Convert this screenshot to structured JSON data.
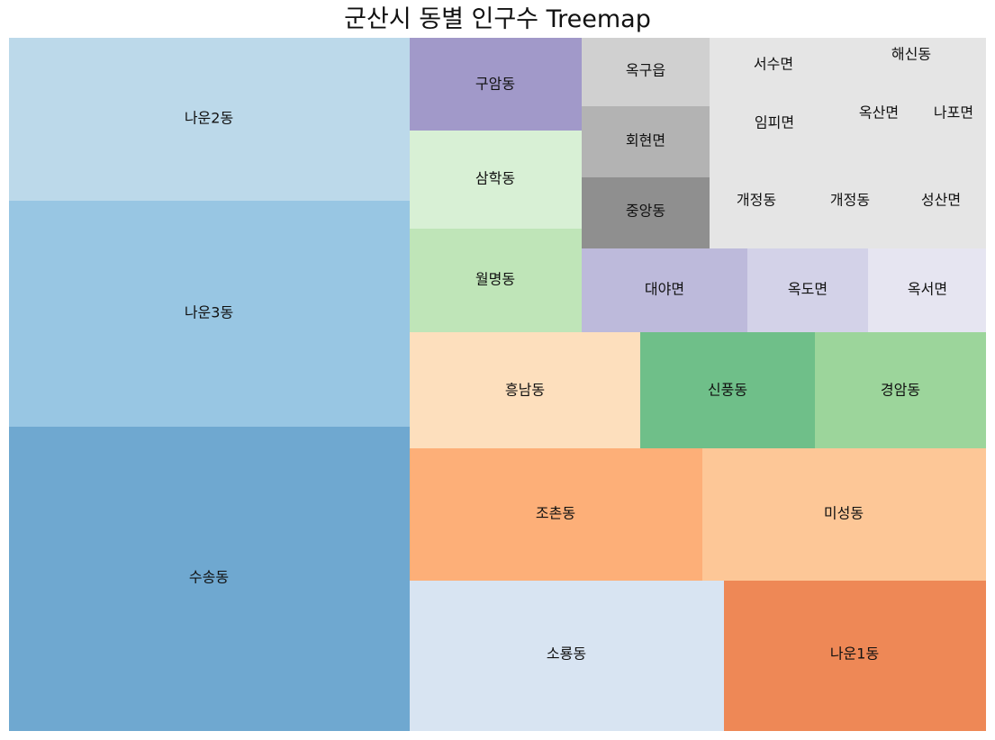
{
  "chart_data": {
    "type": "treemap",
    "title": "군산시 동별 인구수 Treemap",
    "items": [
      {
        "label": "수송동",
        "color": "#6fa8d0"
      },
      {
        "label": "나운3동",
        "color": "#98c6e3"
      },
      {
        "label": "나운2동",
        "color": "#bcd9ea"
      },
      {
        "label": "소룡동",
        "color": "#d8e4f2"
      },
      {
        "label": "나운1동",
        "color": "#ee8856"
      },
      {
        "label": "조촌동",
        "color": "#fdaf78"
      },
      {
        "label": "미성동",
        "color": "#fdc797"
      },
      {
        "label": "흥남동",
        "color": "#fddfbd"
      },
      {
        "label": "신풍동",
        "color": "#6fbf89"
      },
      {
        "label": "경암동",
        "color": "#9cd59b"
      },
      {
        "label": "월명동",
        "color": "#bfe5b8"
      },
      {
        "label": "삼학동",
        "color": "#d8f0d5"
      },
      {
        "label": "구암동",
        "color": "#a199c9"
      },
      {
        "label": "대야면",
        "color": "#bdbadb"
      },
      {
        "label": "옥도면",
        "color": "#d3d2e8"
      },
      {
        "label": "옥서면",
        "color": "#e6e5f1"
      },
      {
        "label": "옥구읍",
        "color": "#d0d0d0"
      },
      {
        "label": "회현면",
        "color": "#b3b3b3"
      },
      {
        "label": "중앙동",
        "color": "#8f8f8f"
      },
      {
        "label": "서수면",
        "color": "#e5e5e5"
      },
      {
        "label": "임피면",
        "color": "#e5e5e5"
      },
      {
        "label": "해신동",
        "color": "#e5e5e5"
      },
      {
        "label": "옥산면",
        "color": "#e5e5e5"
      },
      {
        "label": "나포면",
        "color": "#e5e5e5"
      },
      {
        "label": "개정동",
        "color": "#e5e5e5"
      },
      {
        "label": "개정동",
        "color": "#e5e5e5"
      },
      {
        "label": "성산면",
        "color": "#e5e5e5"
      }
    ]
  }
}
